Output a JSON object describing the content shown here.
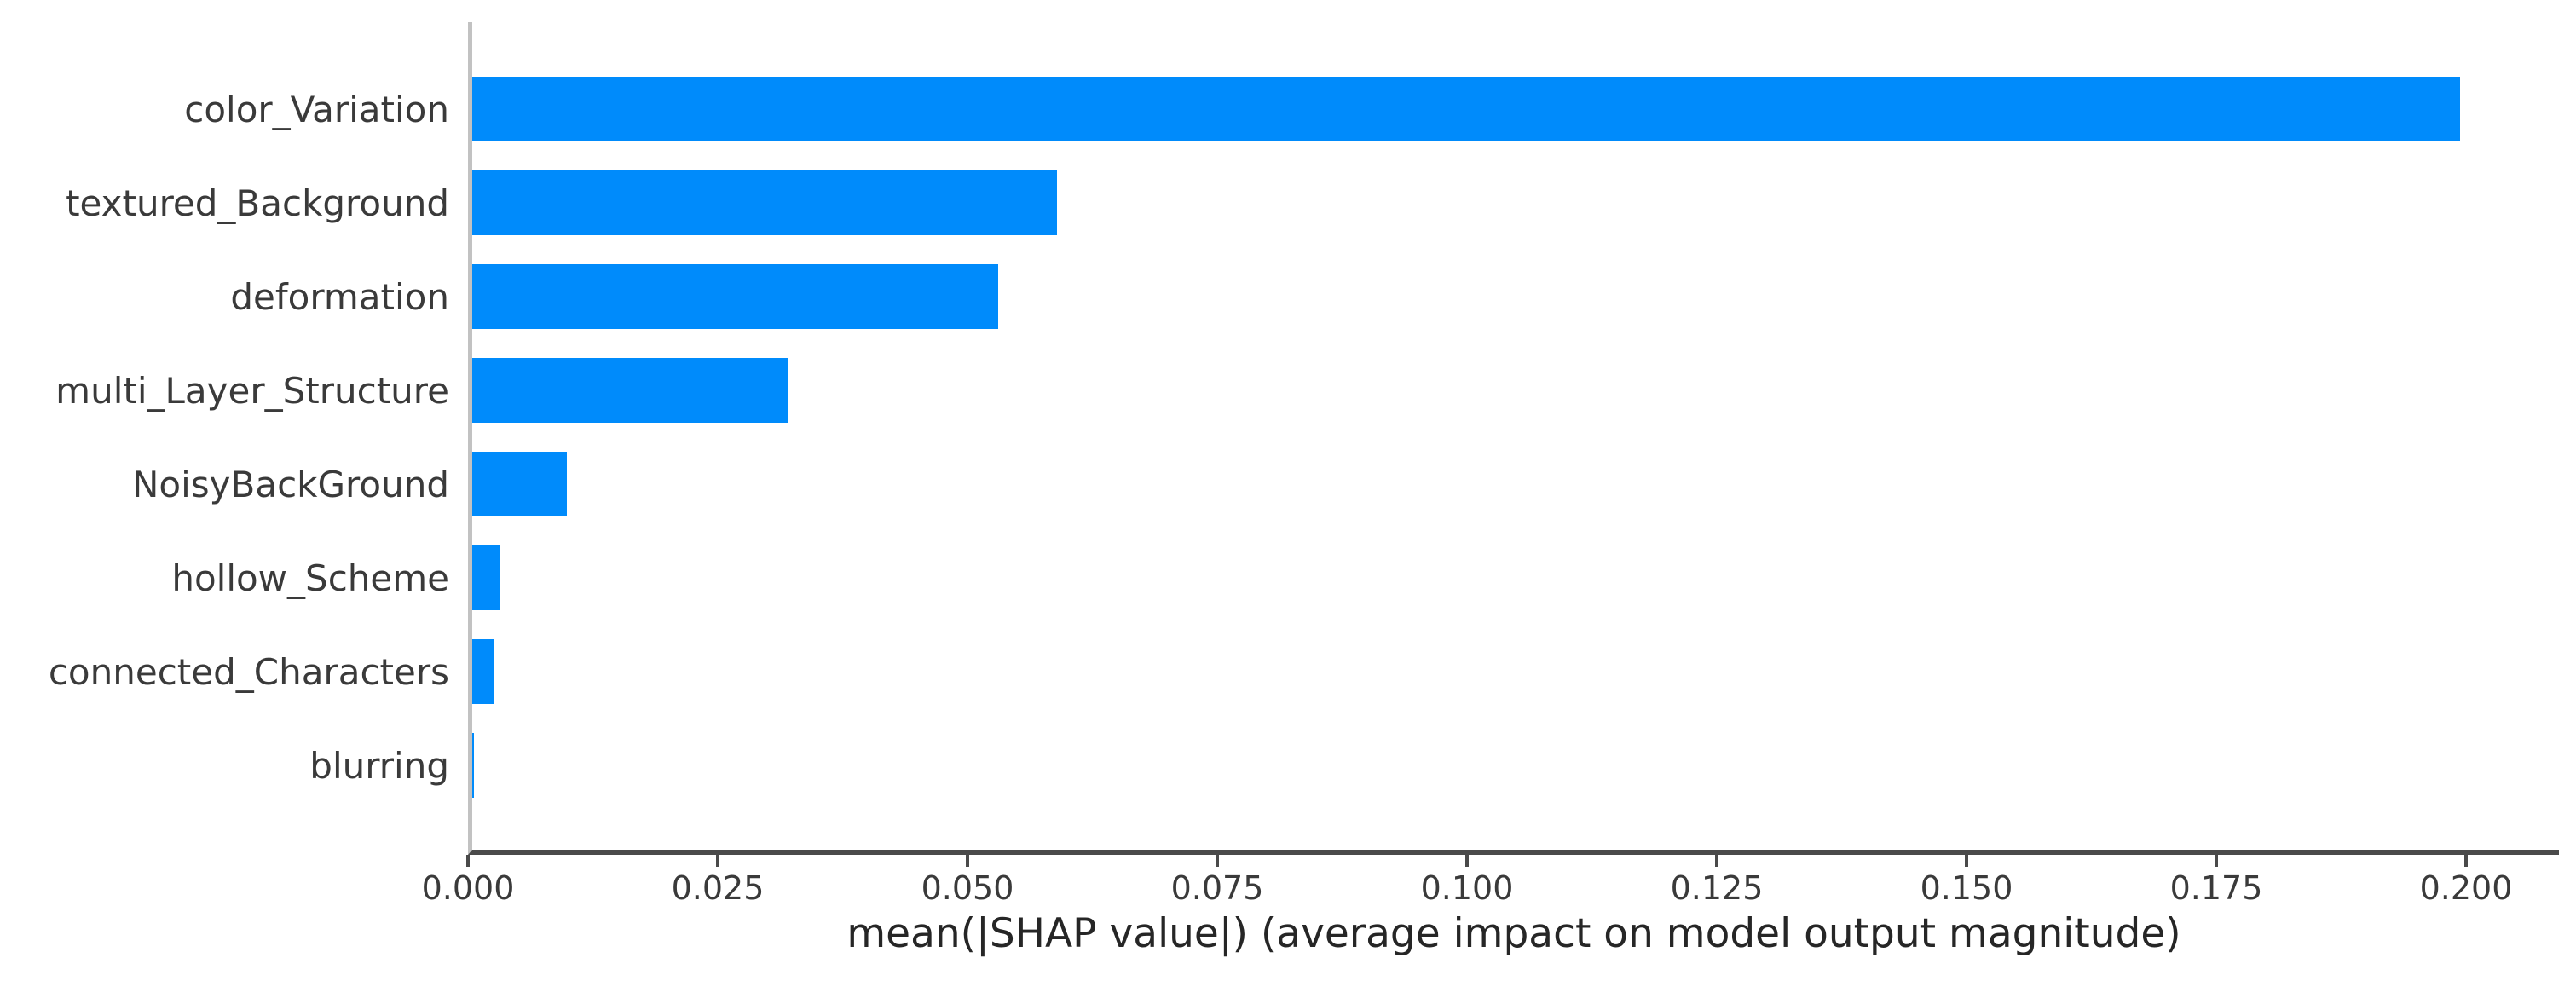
{
  "chart_data": {
    "type": "bar",
    "orientation": "horizontal",
    "title": "",
    "xlabel": "mean(|SHAP value|) (average impact on model output magnitude)",
    "ylabel": "",
    "categories": [
      "color_Variation",
      "textured_Background",
      "deformation",
      "multi_Layer_Structure",
      "NoisyBackGround",
      "hollow_Scheme",
      "connected_Characters",
      "blurring"
    ],
    "values": [
      0.199,
      0.0585,
      0.0526,
      0.0316,
      0.0095,
      0.0028,
      0.0022,
      0.0002
    ],
    "xlim": [
      0,
      0.2093
    ],
    "xtick_labels": [
      "0.000",
      "0.025",
      "0.050",
      "0.075",
      "0.100",
      "0.125",
      "0.150",
      "0.175",
      "0.200"
    ],
    "xtick_values": [
      0.0,
      0.025,
      0.05,
      0.075,
      0.1,
      0.125,
      0.15,
      0.175,
      0.2
    ],
    "grid": false,
    "legend": null,
    "colors": {
      "bar": "#008bfb",
      "axis_line": "#4a4a4a",
      "left_spine": "#c2c2c2",
      "text": "#3a3a3a"
    }
  }
}
